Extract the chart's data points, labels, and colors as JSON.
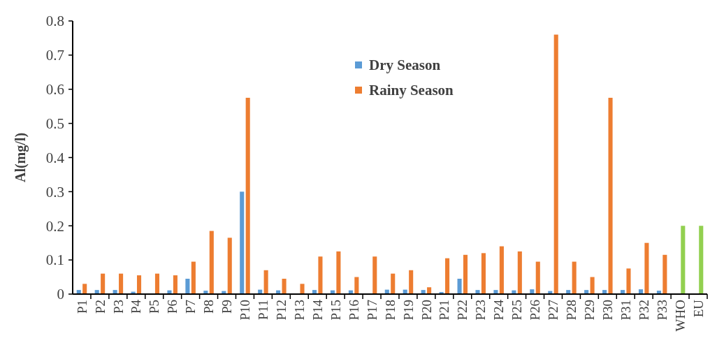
{
  "chart_data": {
    "type": "bar",
    "ylabel": "Al(mg/l)",
    "categories": [
      "P1",
      "P2",
      "P3",
      "P4",
      "P5",
      "P6",
      "P7",
      "P8",
      "P9",
      "P10",
      "P11",
      "P12",
      "P13",
      "P14",
      "P15",
      "P16",
      "P17",
      "P18",
      "P19",
      "P20",
      "P21",
      "P22",
      "P23",
      "P24",
      "P25",
      "P26",
      "P27",
      "P28",
      "P29",
      "P30",
      "P31",
      "P32",
      "P33",
      "WHO",
      "EU"
    ],
    "series": [
      {
        "name": "Dry Season",
        "color": "#5b9bd5",
        "values": [
          0.012,
          0.012,
          0.012,
          0.007,
          0,
          0.011,
          0.045,
          0.01,
          0.009,
          0.3,
          0.013,
          0.011,
          0,
          0.012,
          0.011,
          0.011,
          0,
          0.013,
          0.013,
          0.012,
          0.006,
          0.045,
          0.012,
          0.012,
          0.011,
          0.014,
          0.009,
          0.012,
          0.012,
          0.012,
          0.012,
          0.014,
          0.01,
          null,
          null
        ]
      },
      {
        "name": "Rainy Season",
        "color": "#ed7d31",
        "colors": [
          "#ed7d31",
          "#ed7d31",
          "#ed7d31",
          "#ed7d31",
          "#ed7d31",
          "#ed7d31",
          "#ed7d31",
          "#ed7d31",
          "#ed7d31",
          "#ed7d31",
          "#ed7d31",
          "#ed7d31",
          "#ed7d31",
          "#ed7d31",
          "#ed7d31",
          "#ed7d31",
          "#ed7d31",
          "#ed7d31",
          "#ed7d31",
          "#ed7d31",
          "#ed7d31",
          "#ed7d31",
          "#ed7d31",
          "#ed7d31",
          "#ed7d31",
          "#ed7d31",
          "#ed7d31",
          "#ed7d31",
          "#ed7d31",
          "#ed7d31",
          "#ed7d31",
          "#ed7d31",
          "#ed7d31",
          "#92d050",
          "#92d050"
        ],
        "values": [
          0.03,
          0.06,
          0.06,
          0.055,
          0.06,
          0.055,
          0.095,
          0.185,
          0.165,
          0.575,
          0.07,
          0.045,
          0.03,
          0.11,
          0.125,
          0.05,
          0.11,
          0.06,
          0.07,
          0.02,
          0.105,
          0.115,
          0.12,
          0.14,
          0.125,
          0.095,
          0.76,
          0.095,
          0.05,
          0.575,
          0.075,
          0.15,
          0.115,
          0.2,
          0.2
        ]
      }
    ],
    "ylim": [
      0,
      0.8
    ],
    "yticks": [
      0,
      0.1,
      0.2,
      0.3,
      0.4,
      0.5,
      0.6,
      0.7,
      0.8
    ],
    "legend": "top"
  }
}
